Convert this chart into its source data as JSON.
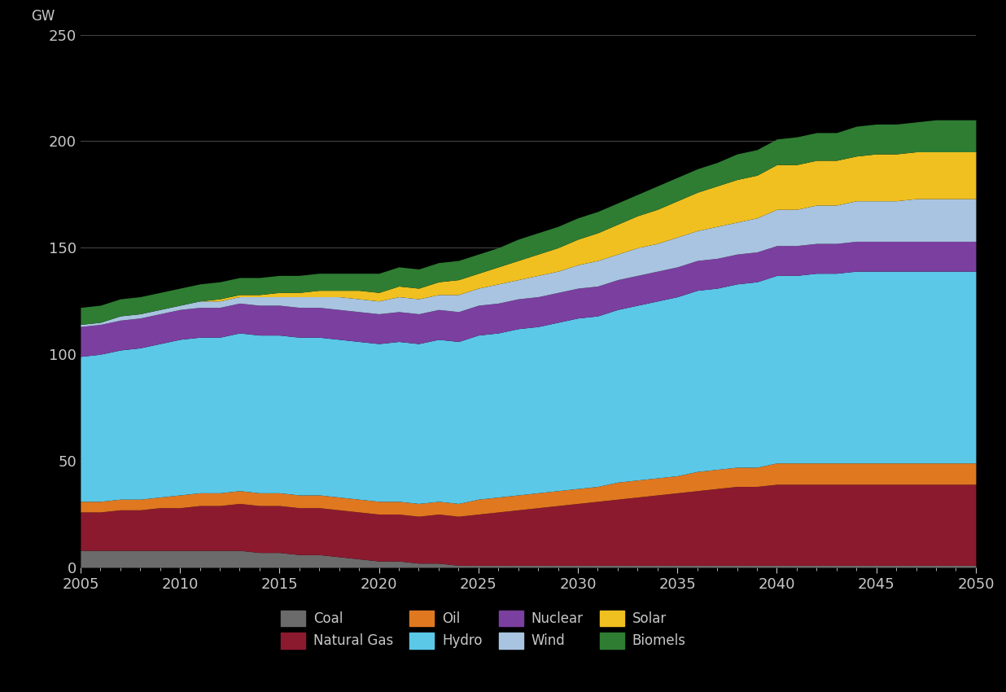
{
  "years": [
    2005,
    2006,
    2007,
    2008,
    2009,
    2010,
    2011,
    2012,
    2013,
    2014,
    2015,
    2016,
    2017,
    2018,
    2019,
    2020,
    2021,
    2022,
    2023,
    2024,
    2025,
    2026,
    2027,
    2028,
    2029,
    2030,
    2031,
    2032,
    2033,
    2034,
    2035,
    2036,
    2037,
    2038,
    2039,
    2040,
    2041,
    2042,
    2043,
    2044,
    2045,
    2046,
    2047,
    2048,
    2049,
    2050
  ],
  "coal": [
    8,
    8,
    8,
    8,
    8,
    8,
    8,
    8,
    8,
    7,
    7,
    6,
    6,
    5,
    4,
    3,
    3,
    2,
    2,
    1,
    1,
    1,
    1,
    1,
    1,
    1,
    1,
    1,
    1,
    1,
    1,
    1,
    1,
    1,
    1,
    1,
    1,
    1,
    1,
    1,
    1,
    1,
    1,
    1,
    1,
    1
  ],
  "natural_gas": [
    18,
    18,
    19,
    19,
    20,
    20,
    21,
    21,
    22,
    22,
    22,
    22,
    22,
    22,
    22,
    22,
    22,
    22,
    23,
    23,
    24,
    25,
    26,
    27,
    28,
    29,
    30,
    31,
    32,
    33,
    34,
    35,
    36,
    37,
    37,
    38,
    38,
    38,
    38,
    38,
    38,
    38,
    38,
    38,
    38,
    38
  ],
  "oil": [
    5,
    5,
    5,
    5,
    5,
    6,
    6,
    6,
    6,
    6,
    6,
    6,
    6,
    6,
    6,
    6,
    6,
    6,
    6,
    6,
    7,
    7,
    7,
    7,
    7,
    7,
    7,
    8,
    8,
    8,
    8,
    9,
    9,
    9,
    9,
    10,
    10,
    10,
    10,
    10,
    10,
    10,
    10,
    10,
    10,
    10
  ],
  "hydro": [
    68,
    69,
    70,
    71,
    72,
    73,
    73,
    73,
    74,
    74,
    74,
    74,
    74,
    74,
    74,
    74,
    75,
    75,
    76,
    76,
    77,
    77,
    78,
    78,
    79,
    80,
    80,
    81,
    82,
    83,
    84,
    85,
    85,
    86,
    87,
    88,
    88,
    89,
    89,
    90,
    90,
    90,
    90,
    90,
    90,
    90
  ],
  "nuclear": [
    14,
    14,
    14,
    14,
    14,
    14,
    14,
    14,
    14,
    14,
    14,
    14,
    14,
    14,
    14,
    14,
    14,
    14,
    14,
    14,
    14,
    14,
    14,
    14,
    14,
    14,
    14,
    14,
    14,
    14,
    14,
    14,
    14,
    14,
    14,
    14,
    14,
    14,
    14,
    14,
    14,
    14,
    14,
    14,
    14,
    14
  ],
  "wind": [
    1,
    1,
    2,
    2,
    2,
    2,
    3,
    3,
    3,
    4,
    4,
    5,
    5,
    6,
    6,
    6,
    7,
    7,
    7,
    8,
    8,
    9,
    9,
    10,
    10,
    11,
    12,
    12,
    13,
    13,
    14,
    14,
    15,
    15,
    16,
    17,
    17,
    18,
    18,
    19,
    19,
    19,
    20,
    20,
    20,
    20
  ],
  "solar": [
    0,
    0,
    0,
    0,
    0,
    0,
    0,
    1,
    1,
    1,
    2,
    2,
    3,
    3,
    4,
    4,
    5,
    5,
    6,
    7,
    7,
    8,
    9,
    10,
    11,
    12,
    13,
    14,
    15,
    16,
    17,
    18,
    19,
    20,
    20,
    21,
    21,
    21,
    21,
    21,
    22,
    22,
    22,
    22,
    22,
    22
  ],
  "biomass": [
    8,
    8,
    8,
    8,
    8,
    8,
    8,
    8,
    8,
    8,
    8,
    8,
    8,
    8,
    8,
    9,
    9,
    9,
    9,
    9,
    9,
    9,
    10,
    10,
    10,
    10,
    10,
    10,
    10,
    11,
    11,
    11,
    11,
    12,
    12,
    12,
    13,
    13,
    13,
    14,
    14,
    14,
    14,
    15,
    15,
    15
  ],
  "colors": {
    "coal": "#6b6b6b",
    "natural_gas": "#8b1a2f",
    "oil": "#e07820",
    "hydro": "#5bc8e8",
    "nuclear": "#7b3fa0",
    "wind": "#a8c4e0",
    "solar": "#f0c020",
    "biomass": "#2e7d32"
  },
  "ylim": [
    0,
    250
  ],
  "yticks": [
    0,
    50,
    100,
    150,
    200,
    250
  ],
  "ylabel": "GW",
  "background_color": "#000000",
  "plot_bg_color": "#000000",
  "text_color": "#c8c8c8",
  "grid_color": "#444444",
  "legend_labels": [
    "Coal",
    "Natural Gas",
    "Oil",
    "Hydro",
    "Nuclear",
    "Wind",
    "Solar",
    "Biomels"
  ]
}
